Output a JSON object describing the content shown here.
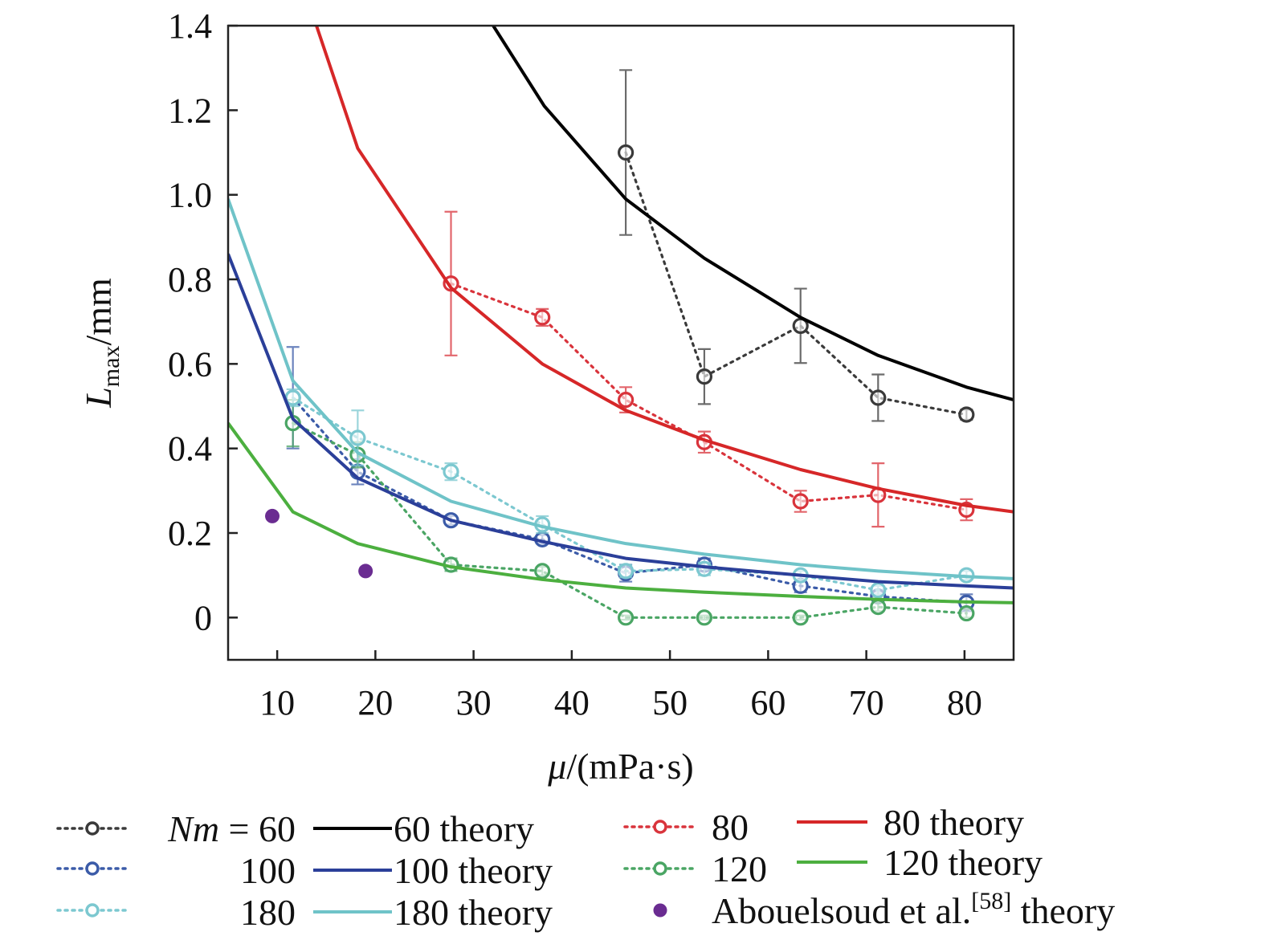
{
  "chart_data": {
    "type": "line",
    "xlabel": {
      "symbol": "μ",
      "unit": "/(mPa·s)"
    },
    "ylabel": {
      "symbol": "L",
      "subscript": "max",
      "unit": "/mm"
    },
    "xlim": [
      5,
      85
    ],
    "ylim": [
      -0.1,
      1.4
    ],
    "xticks": [
      10,
      20,
      30,
      40,
      50,
      60,
      70,
      80
    ],
    "yticks": [
      0,
      0.2,
      0.4,
      0.6,
      0.8,
      1.0,
      1.2,
      1.4
    ],
    "ytick_labels": [
      "0",
      "0.2",
      "0.4",
      "0.6",
      "0.8",
      "1.0",
      "1.2",
      "1.4"
    ],
    "grid": false,
    "legend_position": "bottom",
    "series": [
      {
        "name": "Nm = 60",
        "kind": "experiment",
        "color": "#3a3a3a",
        "x": [
          45.5,
          53.5,
          63.3,
          71.2,
          80.2
        ],
        "y": [
          1.1,
          0.57,
          0.69,
          0.52,
          0.48
        ],
        "err": [
          0.195,
          0.065,
          0.088,
          0.055,
          0.012
        ]
      },
      {
        "name": "60 theory",
        "kind": "theory",
        "color": "#000000",
        "x": [
          32.0,
          37.2,
          45.5,
          53.5,
          63.3,
          71.2,
          80.2,
          85.0
        ],
        "y": [
          1.4,
          1.21,
          0.99,
          0.85,
          0.71,
          0.62,
          0.545,
          0.515
        ]
      },
      {
        "name": "80",
        "kind": "experiment",
        "color": "#d9343c",
        "x": [
          27.7,
          37.0,
          45.5,
          53.5,
          63.3,
          71.2,
          80.2
        ],
        "y": [
          0.79,
          0.71,
          0.515,
          0.415,
          0.275,
          0.29,
          0.255
        ],
        "err": [
          0.17,
          0.02,
          0.03,
          0.025,
          0.025,
          0.075,
          0.025
        ]
      },
      {
        "name": "80 theory",
        "kind": "theory",
        "color": "#d62728",
        "x": [
          14.0,
          18.2,
          27.7,
          37.0,
          45.5,
          53.5,
          63.3,
          71.2,
          80.2,
          85.0
        ],
        "y": [
          1.4,
          1.11,
          0.78,
          0.6,
          0.49,
          0.42,
          0.35,
          0.305,
          0.265,
          0.25
        ]
      },
      {
        "name": "100",
        "kind": "experiment",
        "color": "#3b5ba8",
        "x": [
          11.6,
          18.2,
          27.7,
          37.0,
          45.5,
          53.5,
          63.3,
          71.2,
          80.2
        ],
        "y": [
          0.52,
          0.345,
          0.23,
          0.185,
          0.105,
          0.125,
          0.075,
          0.05,
          0.035
        ],
        "err": [
          0.12,
          0.03,
          0.01,
          0.01,
          0.02,
          0.015,
          0.015,
          0.01,
          0.02
        ]
      },
      {
        "name": "100 theory",
        "kind": "theory",
        "color": "#2b3f99",
        "x": [
          5.0,
          11.6,
          18.2,
          27.7,
          37.0,
          45.5,
          53.5,
          63.3,
          71.2,
          80.2,
          85.0
        ],
        "y": [
          0.86,
          0.47,
          0.33,
          0.23,
          0.18,
          0.14,
          0.12,
          0.1,
          0.085,
          0.075,
          0.07
        ]
      },
      {
        "name": "120",
        "kind": "experiment",
        "color": "#4aa564",
        "x": [
          11.6,
          18.2,
          27.7,
          37.0,
          45.5,
          53.5,
          63.3,
          71.2,
          80.2
        ],
        "y": [
          0.46,
          0.385,
          0.125,
          0.11,
          0.0,
          0.0,
          0.0,
          0.025,
          0.01
        ],
        "err": [
          0.055,
          0.03,
          0.015,
          0.01,
          0.005,
          0.005,
          0.005,
          0.01,
          0.01
        ]
      },
      {
        "name": "120 theory",
        "kind": "theory",
        "color": "#4caf3f",
        "x": [
          5.0,
          11.6,
          18.2,
          27.7,
          37.0,
          45.5,
          53.5,
          63.3,
          71.2,
          80.2,
          85.0
        ],
        "y": [
          0.46,
          0.25,
          0.175,
          0.12,
          0.09,
          0.07,
          0.06,
          0.05,
          0.043,
          0.037,
          0.035
        ]
      },
      {
        "name": "180",
        "kind": "experiment",
        "color": "#7cc8d0",
        "x": [
          11.6,
          18.2,
          27.7,
          37.0,
          45.5,
          53.5,
          63.3,
          71.2,
          80.2
        ],
        "y": [
          0.52,
          0.425,
          0.345,
          0.22,
          0.11,
          0.115,
          0.1,
          0.065,
          0.1
        ],
        "err": [
          0.02,
          0.065,
          0.02,
          0.02,
          0.015,
          0.015,
          0.01,
          0.01,
          0.01
        ]
      },
      {
        "name": "180 theory",
        "kind": "theory",
        "color": "#6fc3c8",
        "x": [
          5.0,
          11.6,
          18.2,
          27.7,
          37.0,
          45.5,
          53.5,
          63.3,
          71.2,
          80.2,
          85.0
        ],
        "y": [
          0.99,
          0.56,
          0.39,
          0.275,
          0.215,
          0.175,
          0.15,
          0.125,
          0.11,
          0.097,
          0.092
        ]
      },
      {
        "name": "Abouelsoud et al. theory",
        "kind": "reference",
        "color": "#6a2c91",
        "x": [
          9.5,
          19.0
        ],
        "y": [
          0.24,
          0.11
        ]
      }
    ],
    "legend": {
      "col1": [
        "Nm = 60",
        "100",
        "180"
      ],
      "col2": [
        "60 theory",
        "100 theory",
        "180 theory"
      ],
      "col3": [
        "80",
        "120"
      ],
      "col4": [
        "80 theory",
        "120 theory"
      ],
      "reference": {
        "text": "Abouelsoud et al.",
        "superscript": "[58]",
        "suffix": " theory"
      }
    }
  }
}
